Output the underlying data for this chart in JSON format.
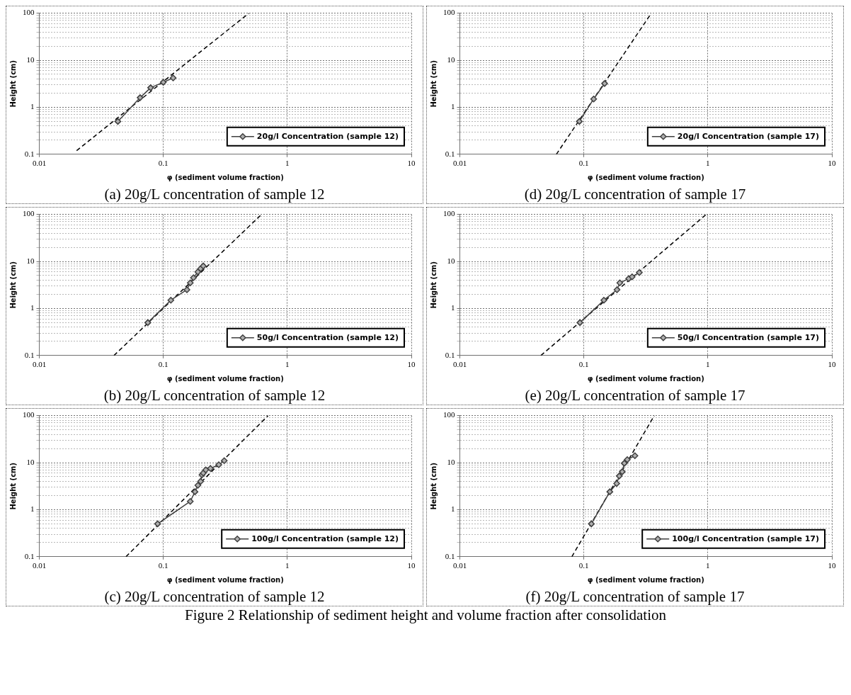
{
  "chart_data": [
    {
      "type": "line",
      "title": "(a) 20g/L concentration of sample 12",
      "xlabel": "φ (sediment volume fraction)",
      "ylabel": "Height (cm)",
      "log": "xy",
      "xlim": [
        0.01,
        10
      ],
      "ylim": [
        0.1,
        100
      ],
      "xticks": [
        0.01,
        0.1,
        1,
        10
      ],
      "yticks": [
        0.1,
        {
          "value": 0.2,
          "label": null
        },
        {
          "value": 0.3,
          "label": null
        },
        {
          "value": 0.4,
          "label": null
        },
        {
          "value": 0.5,
          "label": null
        },
        {
          "value": 0.6,
          "label": null
        },
        {
          "value": 0.7,
          "label": null
        },
        {
          "value": 0.8,
          "label": null
        },
        {
          "value": 0.9,
          "label": null
        },
        1,
        {
          "value": 2,
          "label": null
        },
        {
          "value": 3,
          "label": null
        },
        {
          "value": 4,
          "label": null
        },
        {
          "value": 5,
          "label": null
        },
        {
          "value": 6,
          "label": null
        },
        {
          "value": 7,
          "label": null
        },
        {
          "value": 8,
          "label": null
        },
        {
          "value": 9,
          "label": null
        },
        10,
        {
          "value": 20,
          "label": null
        },
        {
          "value": 30,
          "label": null
        },
        {
          "value": 40,
          "label": null
        },
        {
          "value": 50,
          "label": null
        },
        {
          "value": 60,
          "label": null
        },
        {
          "value": 70,
          "label": null
        },
        {
          "value": 80,
          "label": null
        },
        {
          "value": 90,
          "label": null
        },
        100
      ],
      "grid": true,
      "legend": "bottom right",
      "series": [
        {
          "name": "20g/l Concentration (sample 12)",
          "color": "#404040",
          "marker": "diamond",
          "line_style": "solid",
          "x": [
            0.043,
            0.065,
            0.079,
            0.1,
            0.12
          ],
          "values": [
            0.5,
            1.6,
            2.6,
            3.4,
            4.2
          ]
        },
        {
          "type": "line",
          "color": "#000000",
          "marker": "none",
          "line_style": "dashed",
          "x": [
            0.02,
            0.49
          ],
          "values": [
            0.12,
            100
          ]
        }
      ]
    },
    {
      "type": "line",
      "title": "(d) 20g/L concentration of sample 17",
      "xlabel": "φ (sediment volume fraction)",
      "ylabel": "Height (cm)",
      "log": "xy",
      "xlim": [
        0.01,
        10
      ],
      "ylim": [
        0.1,
        100
      ],
      "xticks": [
        0.01,
        0.1,
        1,
        10
      ],
      "yticks": [
        0.1,
        {
          "value": 0.2,
          "label": null
        },
        {
          "value": 0.3,
          "label": null
        },
        {
          "value": 0.4,
          "label": null
        },
        {
          "value": 0.5,
          "label": null
        },
        {
          "value": 0.6,
          "label": null
        },
        {
          "value": 0.7,
          "label": null
        },
        {
          "value": 0.8,
          "label": null
        },
        {
          "value": 0.9,
          "label": null
        },
        1,
        {
          "value": 2,
          "label": null
        },
        {
          "value": 3,
          "label": null
        },
        {
          "value": 4,
          "label": null
        },
        {
          "value": 5,
          "label": null
        },
        {
          "value": 6,
          "label": null
        },
        {
          "value": 7,
          "label": null
        },
        {
          "value": 8,
          "label": null
        },
        {
          "value": 9,
          "label": null
        },
        10,
        {
          "value": 20,
          "label": null
        },
        {
          "value": 30,
          "label": null
        },
        {
          "value": 40,
          "label": null
        },
        {
          "value": 50,
          "label": null
        },
        {
          "value": 60,
          "label": null
        },
        {
          "value": 70,
          "label": null
        },
        {
          "value": 80,
          "label": null
        },
        {
          "value": 90,
          "label": null
        },
        100
      ],
      "grid": true,
      "legend": "bottom right",
      "series": [
        {
          "name": "20g/l Concentration (sample 17)",
          "color": "#404040",
          "marker": "diamond",
          "line_style": "solid",
          "x": [
            0.092,
            0.12,
            0.147
          ],
          "values": [
            0.5,
            1.5,
            3.2
          ]
        },
        {
          "type": "line",
          "color": "#000000",
          "marker": "none",
          "line_style": "dashed",
          "x": [
            0.06,
            0.35
          ],
          "values": [
            0.1,
            100
          ]
        }
      ]
    },
    {
      "type": "line",
      "title": "(b) 20g/L concentration of sample 12",
      "xlabel": "φ (sediment volume fraction)",
      "ylabel": "Height (cm)",
      "log": "xy",
      "xlim": [
        0.01,
        10
      ],
      "ylim": [
        0.1,
        100
      ],
      "xticks": [
        0.01,
        0.1,
        1,
        10
      ],
      "yticks": [
        0.1,
        {
          "value": 0.2,
          "label": null
        },
        {
          "value": 0.3,
          "label": null
        },
        {
          "value": 0.4,
          "label": null
        },
        {
          "value": 0.5,
          "label": null
        },
        {
          "value": 0.6,
          "label": null
        },
        {
          "value": 0.7,
          "label": null
        },
        {
          "value": 0.8,
          "label": null
        },
        {
          "value": 0.9,
          "label": null
        },
        1,
        {
          "value": 2,
          "label": null
        },
        {
          "value": 3,
          "label": null
        },
        {
          "value": 4,
          "label": null
        },
        {
          "value": 5,
          "label": null
        },
        {
          "value": 6,
          "label": null
        },
        {
          "value": 7,
          "label": null
        },
        {
          "value": 8,
          "label": null
        },
        {
          "value": 9,
          "label": null
        },
        10,
        {
          "value": 20,
          "label": null
        },
        {
          "value": 30,
          "label": null
        },
        {
          "value": 40,
          "label": null
        },
        {
          "value": 50,
          "label": null
        },
        {
          "value": 60,
          "label": null
        },
        {
          "value": 70,
          "label": null
        },
        {
          "value": 80,
          "label": null
        },
        {
          "value": 90,
          "label": null
        },
        100
      ],
      "grid": true,
      "legend": "bottom right",
      "series": [
        {
          "name": "50g/l Concentration (sample 12)",
          "color": "#404040",
          "marker": "diamond",
          "line_style": "solid",
          "x": [
            0.075,
            0.115,
            0.155,
            0.165,
            0.175,
            0.19,
            0.2,
            0.21
          ],
          "values": [
            0.5,
            1.5,
            2.5,
            3.5,
            4.5,
            6,
            7,
            8
          ]
        },
        {
          "type": "line",
          "color": "#000000",
          "marker": "none",
          "line_style": "dashed",
          "x": [
            0.04,
            0.62
          ],
          "values": [
            0.1,
            100
          ]
        }
      ]
    },
    {
      "type": "line",
      "title": "(e) 20g/L concentration of sample 17",
      "xlabel": "φ (sediment volume fraction)",
      "ylabel": "Height (cm)",
      "log": "xy",
      "xlim": [
        0.01,
        10
      ],
      "ylim": [
        0.1,
        100
      ],
      "xticks": [
        0.01,
        0.1,
        1,
        10
      ],
      "yticks": [
        0.1,
        {
          "value": 0.2,
          "label": null
        },
        {
          "value": 0.3,
          "label": null
        },
        {
          "value": 0.4,
          "label": null
        },
        {
          "value": 0.5,
          "label": null
        },
        {
          "value": 0.6,
          "label": null
        },
        {
          "value": 0.7,
          "label": null
        },
        {
          "value": 0.8,
          "label": null
        },
        {
          "value": 0.9,
          "label": null
        },
        1,
        {
          "value": 2,
          "label": null
        },
        {
          "value": 3,
          "label": null
        },
        {
          "value": 4,
          "label": null
        },
        {
          "value": 5,
          "label": null
        },
        {
          "value": 6,
          "label": null
        },
        {
          "value": 7,
          "label": null
        },
        {
          "value": 8,
          "label": null
        },
        {
          "value": 9,
          "label": null
        },
        10,
        {
          "value": 20,
          "label": null
        },
        {
          "value": 30,
          "label": null
        },
        {
          "value": 40,
          "label": null
        },
        {
          "value": 50,
          "label": null
        },
        {
          "value": 60,
          "label": null
        },
        {
          "value": 70,
          "label": null
        },
        {
          "value": 80,
          "label": null
        },
        {
          "value": 90,
          "label": null
        },
        100
      ],
      "grid": true,
      "legend": "bottom right",
      "series": [
        {
          "name": "50g/l Concentration (sample 17)",
          "color": "#404040",
          "marker": "diamond",
          "line_style": "solid",
          "x": [
            0.093,
            0.145,
            0.185,
            0.195,
            0.23,
            0.245,
            0.28
          ],
          "values": [
            0.5,
            1.5,
            2.5,
            3.5,
            4.3,
            4.7,
            5.8
          ]
        },
        {
          "type": "line",
          "color": "#000000",
          "marker": "none",
          "line_style": "dashed",
          "x": [
            0.045,
            0.97
          ],
          "values": [
            0.1,
            100
          ]
        }
      ]
    },
    {
      "type": "line",
      "title": "(c) 20g/L concentration of sample 12",
      "xlabel": "φ (sediment volume fraction)",
      "ylabel": "Height (cm)",
      "log": "xy",
      "xlim": [
        0.01,
        10
      ],
      "ylim": [
        0.1,
        100
      ],
      "xticks": [
        0.01,
        0.1,
        1,
        10
      ],
      "yticks": [
        0.1,
        {
          "value": 0.2,
          "label": null
        },
        {
          "value": 0.3,
          "label": null
        },
        {
          "value": 0.4,
          "label": null
        },
        {
          "value": 0.5,
          "label": null
        },
        {
          "value": 0.6,
          "label": null
        },
        {
          "value": 0.7,
          "label": null
        },
        {
          "value": 0.8,
          "label": null
        },
        {
          "value": 0.9,
          "label": null
        },
        1,
        {
          "value": 2,
          "label": null
        },
        {
          "value": 3,
          "label": null
        },
        {
          "value": 4,
          "label": null
        },
        {
          "value": 5,
          "label": null
        },
        {
          "value": 6,
          "label": null
        },
        {
          "value": 7,
          "label": null
        },
        {
          "value": 8,
          "label": null
        },
        {
          "value": 9,
          "label": null
        },
        10,
        {
          "value": 20,
          "label": null
        },
        {
          "value": 30,
          "label": null
        },
        {
          "value": 40,
          "label": null
        },
        {
          "value": 50,
          "label": null
        },
        {
          "value": 60,
          "label": null
        },
        {
          "value": 70,
          "label": null
        },
        {
          "value": 80,
          "label": null
        },
        {
          "value": 90,
          "label": null
        },
        100
      ],
      "grid": true,
      "legend": "bottom right",
      "series": [
        {
          "name": "100g/l Concentration (sample 12)",
          "color": "#404040",
          "marker": "diamond",
          "line_style": "solid",
          "x": [
            0.09,
            0.165,
            0.18,
            0.19,
            0.2,
            0.205,
            0.21,
            0.22,
            0.24,
            0.28,
            0.31
          ],
          "values": [
            0.5,
            1.5,
            2.4,
            3.3,
            4,
            5.5,
            6,
            7,
            7.5,
            9,
            11
          ]
        },
        {
          "type": "line",
          "color": "#000000",
          "marker": "none",
          "line_style": "dashed",
          "x": [
            0.05,
            0.7
          ],
          "values": [
            0.1,
            100
          ]
        }
      ]
    },
    {
      "type": "line",
      "title": "(f) 20g/L concentration of sample 17",
      "xlabel": "φ (sediment volume fraction)",
      "ylabel": "Height (cm)",
      "log": "xy",
      "xlim": [
        0.01,
        10
      ],
      "ylim": [
        0.1,
        100
      ],
      "xticks": [
        0.01,
        0.1,
        1,
        10
      ],
      "yticks": [
        0.1,
        {
          "value": 0.2,
          "label": null
        },
        {
          "value": 0.3,
          "label": null
        },
        {
          "value": 0.4,
          "label": null
        },
        {
          "value": 0.5,
          "label": null
        },
        {
          "value": 0.6,
          "label": null
        },
        {
          "value": 0.7,
          "label": null
        },
        {
          "value": 0.8,
          "label": null
        },
        {
          "value": 0.9,
          "label": null
        },
        1,
        {
          "value": 2,
          "label": null
        },
        {
          "value": 3,
          "label": null
        },
        {
          "value": 4,
          "label": null
        },
        {
          "value": 5,
          "label": null
        },
        {
          "value": 6,
          "label": null
        },
        {
          "value": 7,
          "label": null
        },
        {
          "value": 8,
          "label": null
        },
        {
          "value": 9,
          "label": null
        },
        10,
        {
          "value": 20,
          "label": null
        },
        {
          "value": 30,
          "label": null
        },
        {
          "value": 40,
          "label": null
        },
        {
          "value": 50,
          "label": null
        },
        {
          "value": 60,
          "label": null
        },
        {
          "value": 70,
          "label": null
        },
        {
          "value": 80,
          "label": null
        },
        {
          "value": 90,
          "label": null
        },
        100
      ],
      "grid": true,
      "legend": "bottom right",
      "annotations": [
        "Figure 2 Relationship of sediment height and volume fraction after consolidation"
      ],
      "series": [
        {
          "name": "100g/l Concentration (sample 17)",
          "color": "#404040",
          "marker": "diamond",
          "line_style": "solid",
          "x": [
            0.115,
            0.162,
            0.184,
            0.193,
            0.204,
            0.212,
            0.224,
            0.258
          ],
          "values": [
            0.5,
            2.4,
            3.6,
            5.2,
            6.4,
            9.7,
            11.6,
            14
          ]
        },
        {
          "type": "line",
          "color": "#000000",
          "marker": "none",
          "line_style": "dashed",
          "x": [
            0.08,
            0.37
          ],
          "values": [
            0.1,
            100
          ]
        }
      ]
    }
  ]
}
